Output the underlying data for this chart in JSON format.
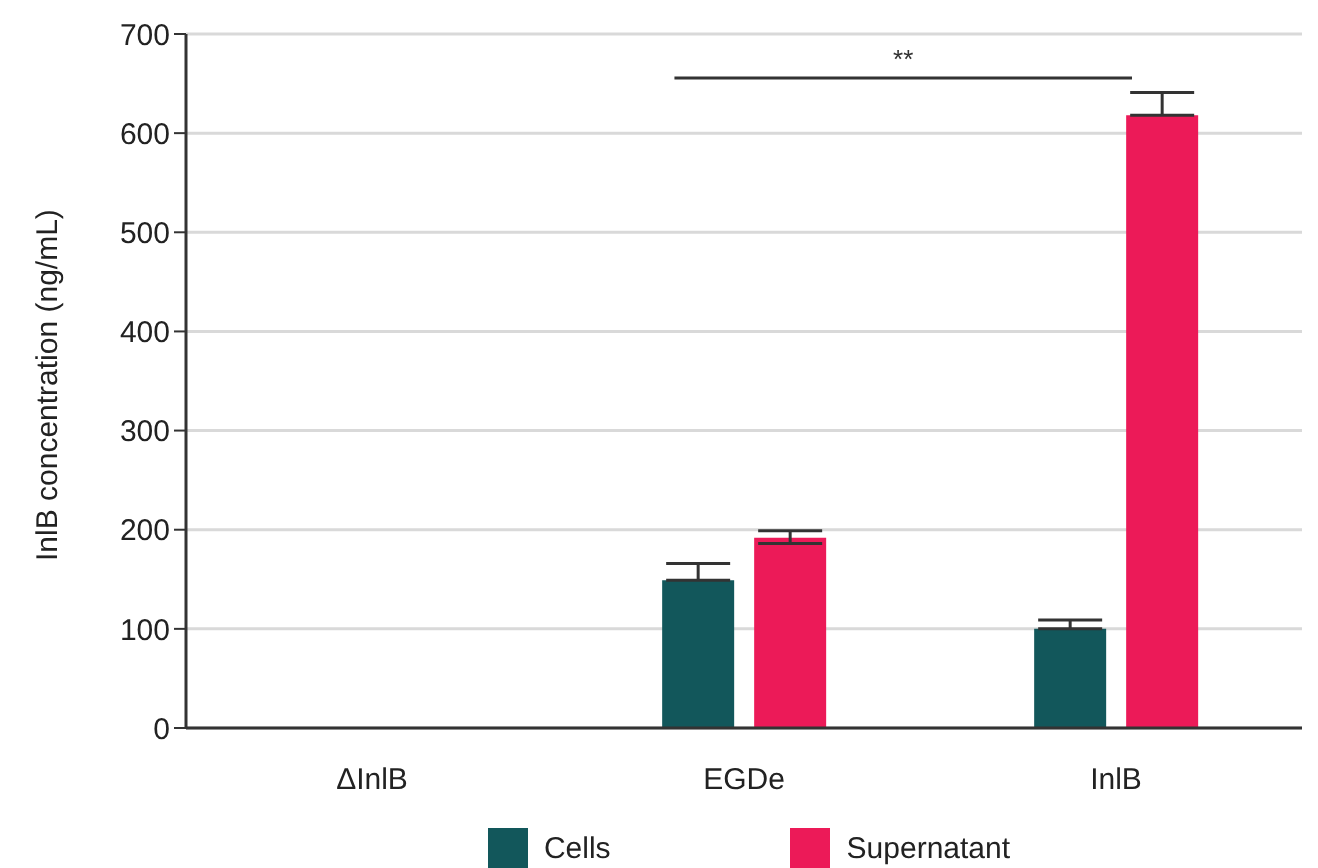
{
  "chart_data": {
    "type": "bar",
    "ylabel": "InlB concentration (ng/mL)",
    "categories": [
      "ΔInlB",
      "EGDe",
      "InlB"
    ],
    "series": [
      {
        "name": "Cells",
        "color": "#12575b",
        "values": [
          0,
          149,
          100
        ],
        "errors": [
          null,
          [
            149,
            166
          ],
          [
            100,
            109
          ]
        ]
      },
      {
        "name": "Supernatant",
        "color": "#ec1a58",
        "values": [
          0,
          192,
          618
        ],
        "errors": [
          null,
          [
            186,
            199
          ],
          [
            618,
            641
          ]
        ]
      }
    ],
    "ylim": [
      0,
      700
    ],
    "yticks": [
      0,
      100,
      200,
      300,
      400,
      500,
      600,
      700
    ],
    "grid": "y",
    "legend": "bottom",
    "annotations": [
      "**"
    ]
  }
}
